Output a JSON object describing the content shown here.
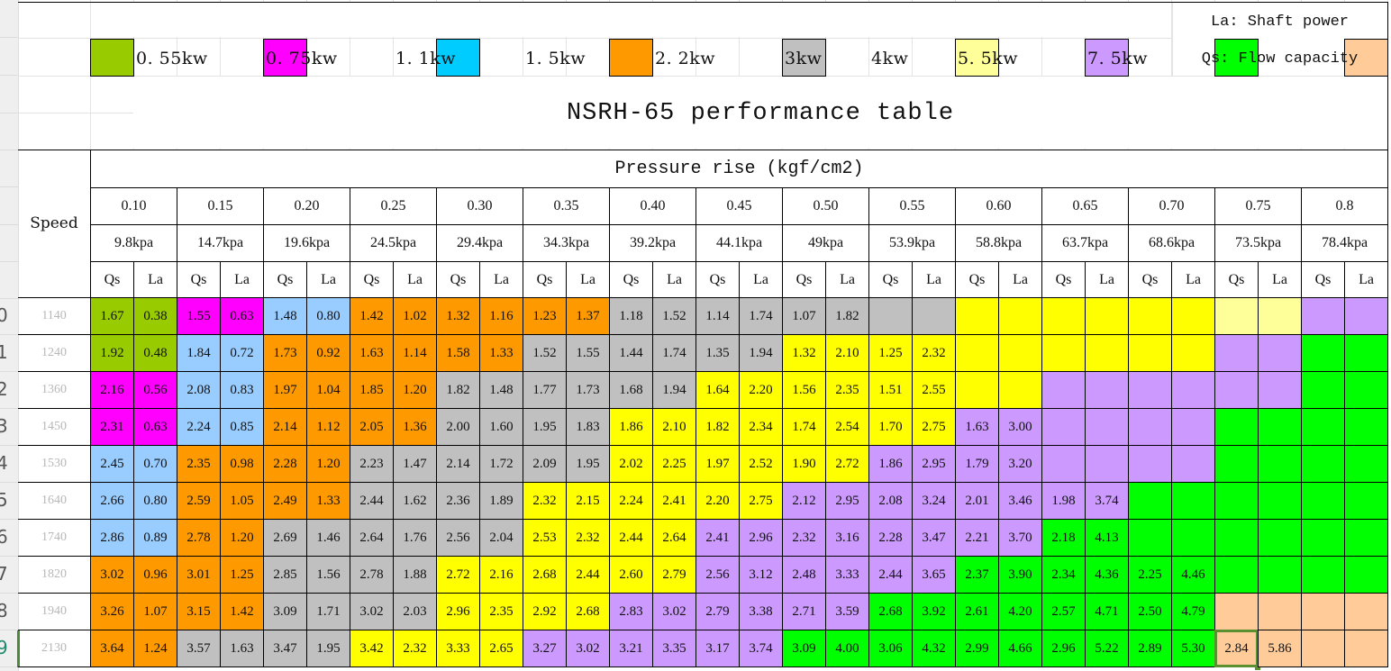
{
  "sheet": {
    "row_numbers": [
      "",
      "",
      "",
      "",
      "",
      "",
      "",
      "",
      "0",
      "1",
      "2",
      "3",
      "4",
      "5",
      "6",
      "7",
      "8",
      "9"
    ],
    "active_row_index": 17
  },
  "legend": {
    "items": [
      {
        "label": "0. 55kw",
        "color": "#99cc00"
      },
      {
        "label": "0. 75kw",
        "color": "#ff00ff"
      },
      {
        "label": "1. 1kw",
        "color": "#00ccff"
      },
      {
        "label": "1. 5kw",
        "color": "#ff9900"
      },
      {
        "label": "2. 2kw",
        "color": "#c0c0c0"
      },
      {
        "label": "3kw",
        "color": "#ffff99"
      },
      {
        "label": "4kw",
        "color": "#cc99ff"
      },
      {
        "label": "5. 5kw",
        "color": "#00ff00"
      },
      {
        "label": "7. 5kw",
        "color": "#ffcc99"
      }
    ],
    "notes": {
      "la": "La: Shaft power",
      "qs": "Qs: Flow capacity"
    }
  },
  "table": {
    "title": "NSRH-65 performance table",
    "pressure_header": "Pressure rise (kgf/cm2)",
    "speed_header": "Speed",
    "qs_label": "Qs",
    "la_label": "La",
    "pressures_kgf": [
      "0.10",
      "0.15",
      "0.20",
      "0.25",
      "0.30",
      "0.35",
      "0.40",
      "0.45",
      "0.50",
      "0.55",
      "0.60",
      "0.65",
      "0.70",
      "0.75",
      "0.8"
    ],
    "pressures_kpa": [
      "9.8kpa",
      "14.7kpa",
      "19.6kpa",
      "24.5kpa",
      "29.4kpa",
      "34.3kpa",
      "39.2kpa",
      "44.1kpa",
      "49kpa",
      "53.9kpa",
      "58.8kpa",
      "63.7kpa",
      "68.6kpa",
      "73.5kpa",
      "78.4kpa"
    ],
    "colors": {
      "G": "#99cc00",
      "M": "#ff00ff",
      "B": "#99ccff",
      "O": "#ff9900",
      "S": "#c0c0c0",
      "Y": "#ffff00",
      "LY": "#ffff99",
      "P": "#cc99ff",
      "N": "#00ff00",
      "T": "#ffcc99"
    },
    "rows": [
      {
        "speed": "1140",
        "values": [
          "1.67",
          "0.38",
          "1.55",
          "0.63",
          "1.48",
          "0.80",
          "1.42",
          "1.02",
          "1.32",
          "1.16",
          "1.23",
          "1.37",
          "1.18",
          "1.52",
          "1.14",
          "1.74",
          "1.07",
          "1.82",
          "",
          "",
          "",
          "",
          "",
          "",
          "",
          "",
          "",
          "",
          "",
          ""
        ],
        "fills": [
          "G",
          "G",
          "M",
          "M",
          "B",
          "B",
          "O",
          "O",
          "O",
          "O",
          "O",
          "O",
          "S",
          "S",
          "S",
          "S",
          "S",
          "S",
          "S",
          "S",
          "Y",
          "Y",
          "Y",
          "Y",
          "Y",
          "Y",
          "LY",
          "LY",
          "P",
          "P"
        ]
      },
      {
        "speed": "1240",
        "values": [
          "1.92",
          "0.48",
          "1.84",
          "0.72",
          "1.73",
          "0.92",
          "1.63",
          "1.14",
          "1.58",
          "1.33",
          "1.52",
          "1.55",
          "1.44",
          "1.74",
          "1.35",
          "1.94",
          "1.32",
          "2.10",
          "1.25",
          "2.32",
          "",
          "",
          "",
          "",
          "",
          "",
          "",
          "",
          "",
          ""
        ],
        "fills": [
          "G",
          "G",
          "B",
          "B",
          "O",
          "O",
          "O",
          "O",
          "O",
          "O",
          "S",
          "S",
          "S",
          "S",
          "S",
          "S",
          "Y",
          "Y",
          "Y",
          "Y",
          "Y",
          "Y",
          "Y",
          "Y",
          "Y",
          "Y",
          "P",
          "P",
          "N",
          "N"
        ]
      },
      {
        "speed": "1360",
        "values": [
          "2.16",
          "0.56",
          "2.08",
          "0.83",
          "1.97",
          "1.04",
          "1.85",
          "1.20",
          "1.82",
          "1.48",
          "1.77",
          "1.73",
          "1.68",
          "1.94",
          "1.64",
          "2.20",
          "1.56",
          "2.35",
          "1.51",
          "2.55",
          "",
          "",
          "",
          "",
          "",
          "",
          "",
          "",
          "",
          ""
        ],
        "fills": [
          "M",
          "M",
          "B",
          "B",
          "O",
          "O",
          "O",
          "O",
          "S",
          "S",
          "S",
          "S",
          "S",
          "S",
          "Y",
          "Y",
          "Y",
          "Y",
          "Y",
          "Y",
          "Y",
          "Y",
          "P",
          "P",
          "P",
          "P",
          "P",
          "P",
          "N",
          "N"
        ]
      },
      {
        "speed": "1450",
        "values": [
          "2.31",
          "0.63",
          "2.24",
          "0.85",
          "2.14",
          "1.12",
          "2.05",
          "1.36",
          "2.00",
          "1.60",
          "1.95",
          "1.83",
          "1.86",
          "2.10",
          "1.82",
          "2.34",
          "1.74",
          "2.54",
          "1.70",
          "2.75",
          "1.63",
          "3.00",
          "",
          "",
          "",
          "",
          "",
          "",
          "",
          ""
        ],
        "fills": [
          "M",
          "M",
          "B",
          "B",
          "O",
          "O",
          "O",
          "O",
          "S",
          "S",
          "S",
          "S",
          "Y",
          "Y",
          "Y",
          "Y",
          "Y",
          "Y",
          "Y",
          "Y",
          "P",
          "P",
          "P",
          "P",
          "P",
          "P",
          "N",
          "N",
          "N",
          "N"
        ]
      },
      {
        "speed": "1530",
        "values": [
          "2.45",
          "0.70",
          "2.35",
          "0.98",
          "2.28",
          "1.20",
          "2.23",
          "1.47",
          "2.14",
          "1.72",
          "2.09",
          "1.95",
          "2.02",
          "2.25",
          "1.97",
          "2.52",
          "1.90",
          "2.72",
          "1.86",
          "2.95",
          "1.79",
          "3.20",
          "",
          "",
          "",
          "",
          "",
          "",
          "",
          ""
        ],
        "fills": [
          "B",
          "B",
          "O",
          "O",
          "O",
          "O",
          "S",
          "S",
          "S",
          "S",
          "S",
          "S",
          "Y",
          "Y",
          "Y",
          "Y",
          "Y",
          "Y",
          "P",
          "P",
          "P",
          "P",
          "P",
          "P",
          "P",
          "P",
          "N",
          "N",
          "N",
          "N"
        ]
      },
      {
        "speed": "1640",
        "values": [
          "2.66",
          "0.80",
          "2.59",
          "1.05",
          "2.49",
          "1.33",
          "2.44",
          "1.62",
          "2.36",
          "1.89",
          "2.32",
          "2.15",
          "2.24",
          "2.41",
          "2.20",
          "2.75",
          "2.12",
          "2.95",
          "2.08",
          "3.24",
          "2.01",
          "3.46",
          "1.98",
          "3.74",
          "",
          "",
          "",
          "",
          "",
          ""
        ],
        "fills": [
          "B",
          "B",
          "O",
          "O",
          "O",
          "O",
          "S",
          "S",
          "S",
          "S",
          "Y",
          "Y",
          "Y",
          "Y",
          "Y",
          "Y",
          "P",
          "P",
          "P",
          "P",
          "P",
          "P",
          "P",
          "P",
          "N",
          "N",
          "N",
          "N",
          "N",
          "N"
        ]
      },
      {
        "speed": "1740",
        "values": [
          "2.86",
          "0.89",
          "2.78",
          "1.20",
          "2.69",
          "1.46",
          "2.64",
          "1.76",
          "2.56",
          "2.04",
          "2.53",
          "2.32",
          "2.44",
          "2.64",
          "2.41",
          "2.96",
          "2.32",
          "3.16",
          "2.28",
          "3.47",
          "2.21",
          "3.70",
          "2.18",
          "4.13",
          "",
          "",
          "",
          "",
          "",
          ""
        ],
        "fills": [
          "B",
          "B",
          "O",
          "O",
          "S",
          "S",
          "S",
          "S",
          "S",
          "S",
          "Y",
          "Y",
          "Y",
          "Y",
          "P",
          "P",
          "P",
          "P",
          "P",
          "P",
          "P",
          "P",
          "N",
          "N",
          "N",
          "N",
          "N",
          "N",
          "N",
          "N"
        ]
      },
      {
        "speed": "1820",
        "values": [
          "3.02",
          "0.96",
          "3.01",
          "1.25",
          "2.85",
          "1.56",
          "2.78",
          "1.88",
          "2.72",
          "2.16",
          "2.68",
          "2.44",
          "2.60",
          "2.79",
          "2.56",
          "3.12",
          "2.48",
          "3.33",
          "2.44",
          "3.65",
          "2.37",
          "3.90",
          "2.34",
          "4.36",
          "2.25",
          "4.46",
          "",
          "",
          "",
          ""
        ],
        "fills": [
          "O",
          "O",
          "O",
          "O",
          "S",
          "S",
          "S",
          "S",
          "Y",
          "Y",
          "Y",
          "Y",
          "Y",
          "Y",
          "P",
          "P",
          "P",
          "P",
          "P",
          "P",
          "N",
          "N",
          "N",
          "N",
          "N",
          "N",
          "N",
          "N",
          "N",
          "N"
        ]
      },
      {
        "speed": "1940",
        "values": [
          "3.26",
          "1.07",
          "3.15",
          "1.42",
          "3.09",
          "1.71",
          "3.02",
          "2.03",
          "2.96",
          "2.35",
          "2.92",
          "2.68",
          "2.83",
          "3.02",
          "2.79",
          "3.38",
          "2.71",
          "3.59",
          "2.68",
          "3.92",
          "2.61",
          "4.20",
          "2.57",
          "4.71",
          "2.50",
          "4.79",
          "",
          "",
          "",
          ""
        ],
        "fills": [
          "O",
          "O",
          "O",
          "O",
          "S",
          "S",
          "S",
          "S",
          "Y",
          "Y",
          "Y",
          "Y",
          "P",
          "P",
          "P",
          "P",
          "P",
          "P",
          "N",
          "N",
          "N",
          "N",
          "N",
          "N",
          "N",
          "N",
          "T",
          "T",
          "T",
          "T"
        ]
      },
      {
        "speed": "2130",
        "values": [
          "3.64",
          "1.24",
          "3.57",
          "1.63",
          "3.47",
          "1.95",
          "3.42",
          "2.32",
          "3.33",
          "2.65",
          "3.27",
          "3.02",
          "3.21",
          "3.35",
          "3.17",
          "3.74",
          "3.09",
          "4.00",
          "3.06",
          "4.32",
          "2.99",
          "4.66",
          "2.96",
          "5.22",
          "2.89",
          "5.30",
          "2.84",
          "5.86",
          "",
          ""
        ],
        "fills": [
          "O",
          "O",
          "S",
          "S",
          "S",
          "S",
          "Y",
          "Y",
          "Y",
          "Y",
          "P",
          "P",
          "P",
          "P",
          "P",
          "P",
          "N",
          "N",
          "N",
          "N",
          "N",
          "N",
          "N",
          "N",
          "N",
          "N",
          "T",
          "T",
          "T",
          "T"
        ]
      }
    ],
    "selected_cell": {
      "row": 9,
      "col": 26
    }
  }
}
